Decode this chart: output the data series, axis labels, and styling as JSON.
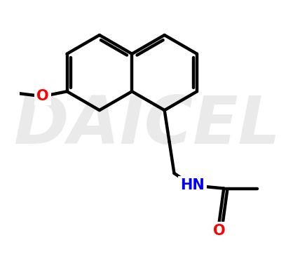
{
  "background_color": "#ffffff",
  "bond_color": "#000000",
  "bond_width": 3.2,
  "O_color": "#ff0000",
  "N_color": "#0000ff",
  "watermark_color": "#cccccc",
  "watermark_text": "DAICEL",
  "watermark_fontsize": 68,
  "watermark_alpha": 0.4,
  "figsize": [
    4.18,
    3.62
  ],
  "dpi": 100,
  "xlim": [
    0,
    418
  ],
  "ylim": [
    0,
    362
  ]
}
